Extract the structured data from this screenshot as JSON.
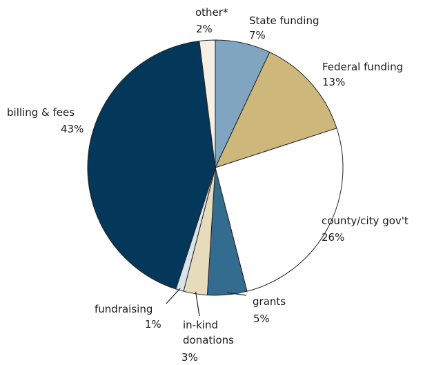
{
  "chart_data": {
    "type": "pie",
    "title": "",
    "slices": [
      {
        "label": "State funding",
        "value": 7,
        "value_label": "7%",
        "color": "#7fa5c0"
      },
      {
        "label": "Federal funding",
        "value": 13,
        "value_label": "13%",
        "color": "#cdb77a"
      },
      {
        "label": "county/city gov't",
        "value": 26,
        "value_label": "26%",
        "color": "#ffffff"
      },
      {
        "label": "grants",
        "value": 5,
        "value_label": "5%",
        "color": "#336c8e"
      },
      {
        "label": "in-kind donations",
        "label_lines": [
          "in-kind",
          "donations"
        ],
        "value": 3,
        "value_label": "3%",
        "color": "#e6dbbb"
      },
      {
        "label": "fundraising",
        "value": 1,
        "value_label": "1%",
        "color": "#d8e3ec"
      },
      {
        "label": "billing & fees",
        "value": 43,
        "value_label": "43%",
        "color": "#04385a"
      },
      {
        "label": "other*",
        "value": 2,
        "value_label": "2%",
        "color": "#f5f0e2"
      }
    ],
    "start": "top",
    "direction": "clockwise",
    "legend": "none",
    "labels": "outside with leader lines for small slices"
  }
}
